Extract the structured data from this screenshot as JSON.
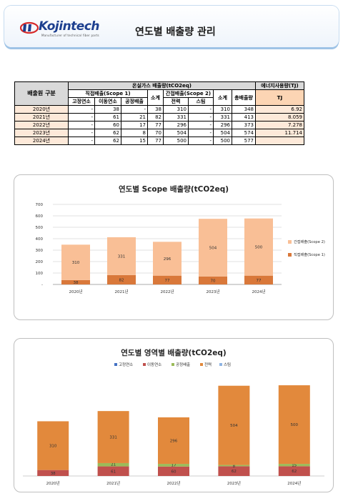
{
  "header": {
    "logo_text": "Kojintech",
    "logo_sub": "Manufacturer of technical fiber parts",
    "title": "연도별 배출량 관리"
  },
  "table": {
    "corner": "배출원 구분",
    "ghg_header": "온실가스 배출량(tCO2eq)",
    "energy_header": "에너지사용량(TJ)",
    "scope1_header": "직접배출(Scope 1)",
    "scope2_header": "간접배출(Scope 2)",
    "subtotal": "소계",
    "subtotal2": "소계",
    "total": "총배출량",
    "tj": "TJ",
    "sub_fixed": "고정연소",
    "sub_mobile": "이동연소",
    "sub_process": "공정배출",
    "sub_power": "전력",
    "sub_steam": "스팀",
    "rows": [
      {
        "year": "2020년",
        "fixed": "-",
        "mobile": "38",
        "process": "-",
        "s1": "38",
        "power": "310",
        "steam": "-",
        "s2": "310",
        "total": "348",
        "tj": "6.92"
      },
      {
        "year": "2021년",
        "fixed": "-",
        "mobile": "61",
        "process": "21",
        "s1": "82",
        "power": "331",
        "steam": "-",
        "s2": "331",
        "total": "413",
        "tj": "8.059"
      },
      {
        "year": "2022년",
        "fixed": "-",
        "mobile": "60",
        "process": "17",
        "s1": "77",
        "power": "296",
        "steam": "-",
        "s2": "296",
        "total": "373",
        "tj": "7.278"
      },
      {
        "year": "2023년",
        "fixed": "-",
        "mobile": "62",
        "process": "8",
        "s1": "70",
        "power": "504",
        "steam": "-",
        "s2": "504",
        "total": "574",
        "tj": "11.714"
      },
      {
        "year": "2024년",
        "fixed": "-",
        "mobile": "62",
        "process": "15",
        "s1": "77",
        "power": "500",
        "steam": "-",
        "s2": "500",
        "total": "577",
        "tj": ""
      }
    ]
  },
  "chart_data": [
    {
      "type": "bar",
      "stacked": true,
      "title": "연도별 Scope 배출량(tCO2eq)",
      "categories": [
        "2020년",
        "2021년",
        "2022년",
        "2023년",
        "2024년"
      ],
      "series": [
        {
          "name": "직접배출(Scope 1)",
          "values": [
            38,
            82,
            77,
            70,
            77
          ],
          "color": "#d9783a"
        },
        {
          "name": "간접배출(Scope 2)",
          "values": [
            310,
            331,
            296,
            504,
            500
          ],
          "color": "#f9bf96"
        }
      ],
      "ylim": [
        0,
        700
      ],
      "yticks": [
        "-",
        "100",
        "200",
        "300",
        "400",
        "500",
        "600",
        "700"
      ],
      "legend": "right",
      "grid": true
    },
    {
      "type": "bar",
      "stacked": true,
      "title": "연도별 영역별 배출량(tCO2eq)",
      "categories": [
        "2020년",
        "2021년",
        "2022년",
        "2023년",
        "2024년"
      ],
      "series": [
        {
          "name": "고정연소",
          "values": [
            0,
            0,
            0,
            0,
            0
          ],
          "color": "#4472c4",
          "labels": [
            "",
            "",
            "",
            "",
            ""
          ]
        },
        {
          "name": "이동연소",
          "values": [
            38,
            61,
            60,
            62,
            62
          ],
          "color": "#c0504d",
          "labels": [
            "38",
            "61",
            "60",
            "62",
            "62"
          ]
        },
        {
          "name": "공정배출",
          "values": [
            0,
            21,
            17,
            8,
            15
          ],
          "color": "#9bbb59",
          "labels": [
            "",
            "21",
            "17",
            "8",
            "15"
          ]
        },
        {
          "name": "전력",
          "values": [
            310,
            331,
            296,
            504,
            500
          ],
          "color": "#e2893c",
          "labels": [
            "310",
            "331",
            "296",
            "504",
            "500"
          ]
        },
        {
          "name": "스팀",
          "values": [
            0,
            0,
            0,
            0,
            0
          ],
          "color": "#8eb4e3",
          "labels": [
            "",
            "",
            "",
            "",
            ""
          ]
        }
      ],
      "legend": "top",
      "grid": false
    }
  ]
}
